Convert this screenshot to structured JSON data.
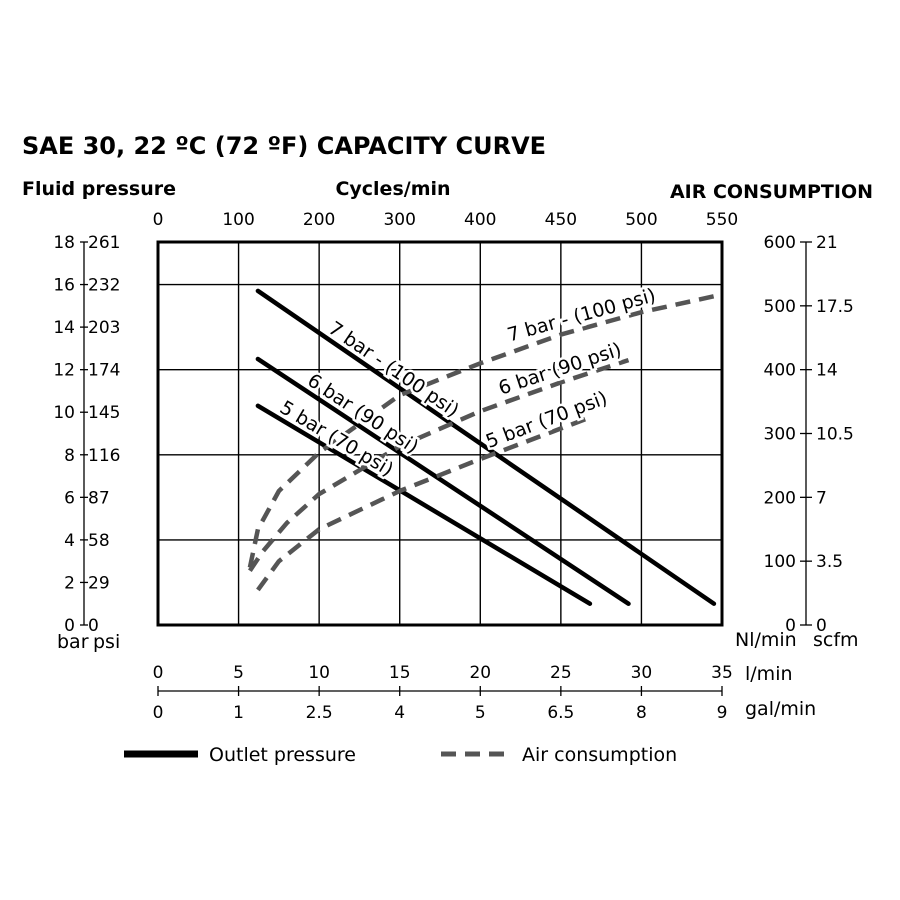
{
  "colors": {
    "outlet": "#000000",
    "air": "#555555",
    "frame": "#000000",
    "background": "#ffffff"
  },
  "chart_data": {
    "type": "line",
    "title": "SAE 30, 22 ºC (72 ºF) CAPACITY CURVE",
    "left_axis_title": "Fluid pressure",
    "top_axis_title": "Cycles/min",
    "right_axis_title": "AIR CONSUMPTION",
    "left_axis": {
      "unit_bar": "bar",
      "unit_psi": "psi",
      "ticks_bar": [
        "0",
        "2",
        "4",
        "6",
        "8",
        "10",
        "12",
        "14",
        "16",
        "18"
      ],
      "ticks_psi": [
        "0",
        "29",
        "58",
        "87",
        "116",
        "145",
        "174",
        "203",
        "232",
        "261"
      ],
      "ylim": [
        0,
        18
      ]
    },
    "right_axis": {
      "unit_nl": "Nl/min",
      "unit_scfm": "scfm",
      "ticks_nl": [
        "0",
        "100",
        "200",
        "300",
        "400",
        "500",
        "600"
      ],
      "ticks_scfm": [
        "0",
        "3.5",
        "7",
        "10.5",
        "14",
        "17.5",
        "21"
      ],
      "ylim": [
        0,
        600
      ]
    },
    "top_axis": {
      "ticks": [
        "0",
        "100",
        "200",
        "300",
        "400",
        "450",
        "500",
        "550"
      ],
      "xlim": [
        0,
        35
      ]
    },
    "bottom_axis_lmin": {
      "unit": "l/min",
      "ticks": [
        "0",
        "5",
        "10",
        "15",
        "20",
        "25",
        "30",
        "35"
      ],
      "xlim": [
        0,
        35
      ]
    },
    "bottom_axis_galmin": {
      "unit": "gal/min",
      "ticks": [
        "0",
        "1",
        "2.5",
        "4",
        "5",
        "6.5",
        "8",
        "9"
      ]
    },
    "grid": true,
    "series": [
      {
        "name": "7 bar - (100 psi)",
        "kind": "outlet",
        "x": [
          6.2,
          34.5
        ],
        "y": [
          15.7,
          1.0
        ]
      },
      {
        "name": "6 bar (90 psi)",
        "kind": "outlet",
        "x": [
          6.2,
          29.2
        ],
        "y": [
          12.5,
          1.0
        ]
      },
      {
        "name": "5 bar (70 psi)",
        "kind": "outlet",
        "x": [
          6.2,
          26.8
        ],
        "y": [
          10.3,
          1.0
        ]
      },
      {
        "name": "7 bar - (100 psi)",
        "kind": "air",
        "x": [
          5.7,
          6.2,
          7.5,
          10,
          15,
          20,
          25,
          30,
          34.5
        ],
        "y": [
          90,
          150,
          210,
          270,
          360,
          410,
          455,
          490,
          515
        ]
      },
      {
        "name": "6 bar (90 psi)",
        "kind": "air",
        "x": [
          5.7,
          6.5,
          8,
          10,
          15,
          20,
          25,
          29.2
        ],
        "y": [
          85,
          115,
          160,
          205,
          280,
          335,
          380,
          415
        ]
      },
      {
        "name": "5 bar (70 psi)",
        "kind": "air",
        "x": [
          6.2,
          7.5,
          10,
          15,
          20,
          26.8
        ],
        "y": [
          55,
          100,
          150,
          210,
          260,
          325
        ]
      }
    ],
    "legend": {
      "placement": "bottom",
      "items": [
        {
          "label": "Outlet pressure",
          "kind": "outlet"
        },
        {
          "label": "Air consumption",
          "kind": "air"
        }
      ]
    }
  }
}
